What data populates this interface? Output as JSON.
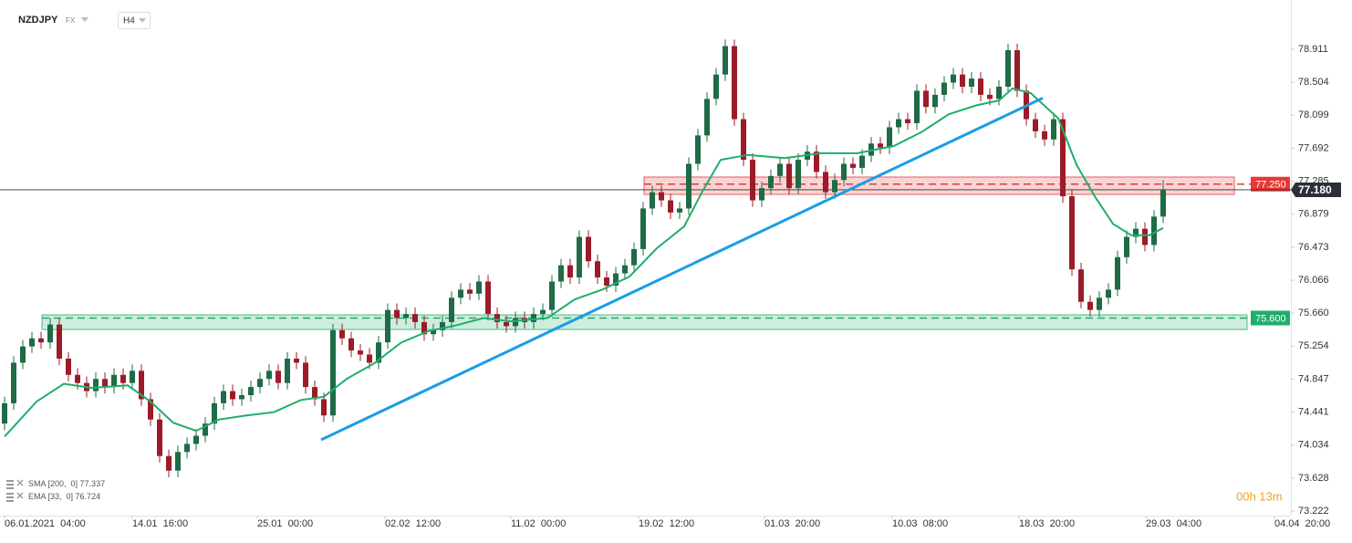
{
  "chart_data": {
    "type": "candlestick",
    "symbol": "NZDJPY",
    "market": "FX",
    "interval": "H4",
    "timer": "00h 13m",
    "up_color": "#1e6b45",
    "down_color": "#9b1c28",
    "ylim": [
      73.166,
      79.518
    ],
    "yticks": [
      78.911,
      78.504,
      78.099,
      77.692,
      77.285,
      76.879,
      76.473,
      76.066,
      {
        "value": 75.66,
        "label": "75.660"
      },
      75.254,
      74.847,
      74.441,
      74.034,
      73.628,
      73.222
    ],
    "xlim": [
      -0.5,
      141.0
    ],
    "xticks": [
      {
        "value": 0,
        "label": "06.01.2021  04:00"
      },
      {
        "value": 14,
        "label": "14.01  16:00"
      },
      {
        "value": 27.7,
        "label": "25.01  00:00"
      },
      {
        "value": 41.7,
        "label": "02.02  12:00"
      },
      {
        "value": 55.5,
        "label": "11.02  00:00"
      },
      {
        "value": 69.5,
        "label": "19.02  12:00"
      },
      {
        "value": 83.3,
        "label": "01.03  20:00"
      },
      {
        "value": 97.3,
        "label": "10.03  08:00"
      },
      {
        "value": 111.2,
        "label": "18.03  20:00"
      },
      {
        "value": 125.1,
        "label": "29.03  04:00"
      },
      {
        "value": 139.2,
        "label": "04.04  20:00"
      }
    ],
    "candles": [
      [
        74.3,
        74.63,
        74.22,
        74.55
      ],
      [
        74.55,
        75.13,
        74.47,
        75.05
      ],
      [
        75.05,
        75.33,
        74.97,
        75.25
      ],
      [
        75.25,
        75.43,
        75.17,
        75.35
      ],
      [
        75.35,
        75.43,
        75.22,
        75.3
      ],
      [
        75.3,
        75.6,
        75.22,
        75.52
      ],
      [
        75.52,
        75.6,
        75.02,
        75.1
      ],
      [
        75.1,
        75.18,
        74.82,
        74.9
      ],
      [
        74.9,
        74.98,
        74.72,
        74.8
      ],
      [
        74.8,
        74.88,
        74.62,
        74.7
      ],
      [
        74.7,
        74.93,
        74.62,
        74.85
      ],
      [
        74.85,
        74.93,
        74.67,
        74.75
      ],
      [
        74.75,
        74.98,
        74.67,
        74.9
      ],
      [
        74.9,
        74.98,
        74.72,
        74.8
      ],
      [
        74.8,
        75.03,
        74.72,
        74.95
      ],
      [
        74.95,
        75.03,
        74.52,
        74.6
      ],
      [
        74.6,
        74.68,
        74.27,
        74.35
      ],
      [
        74.35,
        74.43,
        73.82,
        73.9
      ],
      [
        73.9,
        73.98,
        73.64,
        73.72
      ],
      [
        73.72,
        74.03,
        73.64,
        73.95
      ],
      [
        73.95,
        74.13,
        73.87,
        74.05
      ],
      [
        74.05,
        74.23,
        73.97,
        74.15
      ],
      [
        74.15,
        74.38,
        74.07,
        74.3
      ],
      [
        74.3,
        74.63,
        74.22,
        74.55
      ],
      [
        74.55,
        74.78,
        74.47,
        74.7
      ],
      [
        74.7,
        74.78,
        74.52,
        74.6
      ],
      [
        74.6,
        74.73,
        74.52,
        74.65
      ],
      [
        74.65,
        74.83,
        74.57,
        74.75
      ],
      [
        74.75,
        74.93,
        74.67,
        74.85
      ],
      [
        74.85,
        75.03,
        74.77,
        74.95
      ],
      [
        74.95,
        75.03,
        74.72,
        74.8
      ],
      [
        74.8,
        75.18,
        74.72,
        75.1
      ],
      [
        75.1,
        75.18,
        74.97,
        75.05
      ],
      [
        75.05,
        75.13,
        74.67,
        74.75
      ],
      [
        74.75,
        74.83,
        74.52,
        74.6
      ],
      [
        74.6,
        74.68,
        74.32,
        74.4
      ],
      [
        74.4,
        75.53,
        74.32,
        75.45
      ],
      [
        75.45,
        75.53,
        75.27,
        75.35
      ],
      [
        75.35,
        75.43,
        75.12,
        75.2
      ],
      [
        75.2,
        75.28,
        75.07,
        75.15
      ],
      [
        75.15,
        75.23,
        74.97,
        75.05
      ],
      [
        75.05,
        75.38,
        74.97,
        75.3
      ],
      [
        75.3,
        75.78,
        75.22,
        75.7
      ],
      [
        75.7,
        75.78,
        75.52,
        75.6
      ],
      [
        75.6,
        75.73,
        75.52,
        75.65
      ],
      [
        75.65,
        75.73,
        75.47,
        75.55
      ],
      [
        75.55,
        75.63,
        75.32,
        75.4
      ],
      [
        75.4,
        75.53,
        75.32,
        75.45
      ],
      [
        75.45,
        75.63,
        75.37,
        75.55
      ],
      [
        75.55,
        75.93,
        75.47,
        75.85
      ],
      [
        75.85,
        76.03,
        75.77,
        75.95
      ],
      [
        75.95,
        76.03,
        75.82,
        75.9
      ],
      [
        75.9,
        76.13,
        75.82,
        76.05
      ],
      [
        76.05,
        76.13,
        75.57,
        75.65
      ],
      [
        75.65,
        75.73,
        75.47,
        75.55
      ],
      [
        75.55,
        75.63,
        75.42,
        75.5
      ],
      [
        75.5,
        75.68,
        75.42,
        75.6
      ],
      [
        75.6,
        75.68,
        75.47,
        75.55
      ],
      [
        75.55,
        75.73,
        75.47,
        75.65
      ],
      [
        75.65,
        75.78,
        75.57,
        75.7
      ],
      [
        75.7,
        76.13,
        75.62,
        76.05
      ],
      [
        76.05,
        76.33,
        75.97,
        76.25
      ],
      [
        76.25,
        76.33,
        76.02,
        76.1
      ],
      [
        76.1,
        76.68,
        76.02,
        76.6
      ],
      [
        76.6,
        76.68,
        76.22,
        76.3
      ],
      [
        76.3,
        76.38,
        76.02,
        76.1
      ],
      [
        76.1,
        76.18,
        75.92,
        76.0
      ],
      [
        76.0,
        76.23,
        75.92,
        76.15
      ],
      [
        76.15,
        76.33,
        76.07,
        76.25
      ],
      [
        76.25,
        76.53,
        76.17,
        76.45
      ],
      [
        76.45,
        77.03,
        76.37,
        76.95
      ],
      [
        76.95,
        77.23,
        76.87,
        77.15
      ],
      [
        77.15,
        77.23,
        76.97,
        77.05
      ],
      [
        77.05,
        77.13,
        76.82,
        76.9
      ],
      [
        76.9,
        77.03,
        76.82,
        76.95
      ],
      [
        76.95,
        77.58,
        76.87,
        77.5
      ],
      [
        77.5,
        77.93,
        77.42,
        77.85
      ],
      [
        77.85,
        78.38,
        77.77,
        78.3
      ],
      [
        78.3,
        78.68,
        78.22,
        78.6
      ],
      [
        78.6,
        79.03,
        78.52,
        78.95
      ],
      [
        78.95,
        79.03,
        77.97,
        78.05
      ],
      [
        78.05,
        78.13,
        77.47,
        77.55
      ],
      [
        77.55,
        77.63,
        76.97,
        77.05
      ],
      [
        77.05,
        77.28,
        76.97,
        77.2
      ],
      [
        77.2,
        77.43,
        77.12,
        77.35
      ],
      [
        77.35,
        77.58,
        77.27,
        77.5
      ],
      [
        77.5,
        77.58,
        77.12,
        77.2
      ],
      [
        77.2,
        77.63,
        77.12,
        77.55
      ],
      [
        77.55,
        77.73,
        77.47,
        77.65
      ],
      [
        77.65,
        77.73,
        77.32,
        77.4
      ],
      [
        77.4,
        77.48,
        77.07,
        77.15
      ],
      [
        77.15,
        77.38,
        77.07,
        77.3
      ],
      [
        77.3,
        77.58,
        77.22,
        77.5
      ],
      [
        77.5,
        77.58,
        77.37,
        77.45
      ],
      [
        77.45,
        77.68,
        77.37,
        77.6
      ],
      [
        77.6,
        77.83,
        77.52,
        77.75
      ],
      [
        77.75,
        77.83,
        77.62,
        77.7
      ],
      [
        77.7,
        78.03,
        77.62,
        77.95
      ],
      [
        77.95,
        78.13,
        77.87,
        78.05
      ],
      [
        78.05,
        78.13,
        77.92,
        78.0
      ],
      [
        78.0,
        78.48,
        77.92,
        78.4
      ],
      [
        78.4,
        78.48,
        78.12,
        78.2
      ],
      [
        78.2,
        78.43,
        78.12,
        78.35
      ],
      [
        78.35,
        78.58,
        78.27,
        78.5
      ],
      [
        78.5,
        78.68,
        78.42,
        78.6
      ],
      [
        78.6,
        78.68,
        78.37,
        78.45
      ],
      [
        78.45,
        78.63,
        78.37,
        78.55
      ],
      [
        78.55,
        78.63,
        78.27,
        78.35
      ],
      [
        78.35,
        78.43,
        78.22,
        78.3
      ],
      [
        78.3,
        78.53,
        78.22,
        78.45
      ],
      [
        78.45,
        78.98,
        78.37,
        78.9
      ],
      [
        78.9,
        78.98,
        78.32,
        78.4
      ],
      [
        78.4,
        78.48,
        77.97,
        78.05
      ],
      [
        78.05,
        78.13,
        77.82,
        77.9
      ],
      [
        77.9,
        77.98,
        77.72,
        77.8
      ],
      [
        77.8,
        78.13,
        77.72,
        78.05
      ],
      [
        78.05,
        78.13,
        77.02,
        77.1
      ],
      [
        77.1,
        77.18,
        76.12,
        76.2
      ],
      [
        76.2,
        76.28,
        75.72,
        75.8
      ],
      [
        75.8,
        75.88,
        75.62,
        75.7
      ],
      [
        75.7,
        75.93,
        75.62,
        75.85
      ],
      [
        75.85,
        76.03,
        75.77,
        75.95
      ],
      [
        75.95,
        76.43,
        75.87,
        76.35
      ],
      [
        76.35,
        76.68,
        76.27,
        76.6
      ],
      [
        76.6,
        76.78,
        76.52,
        76.7
      ],
      [
        76.7,
        76.78,
        76.42,
        76.5
      ],
      [
        76.5,
        76.93,
        76.42,
        76.85
      ],
      [
        76.85,
        77.3,
        76.77,
        77.18
      ]
    ],
    "indicators": [
      {
        "label": "SMA [200,  0]",
        "value": 77.337
      },
      {
        "label": "EMA [33,  0]",
        "value": 76.724,
        "color": "#1fae6a",
        "x": [
          0,
          3.5,
          6.5,
          9.5,
          13.5,
          16,
          18.5,
          21,
          23.5,
          26.5,
          29.5,
          32.5,
          35,
          37.5,
          40.5,
          43.5,
          46.5,
          49.5,
          52.5,
          55.5,
          59.5,
          62.5,
          65.5,
          68.5,
          71.5,
          74.5,
          76.5,
          78.5,
          81.5,
          85.5,
          89.5,
          93.5,
          97.5,
          100.5,
          103.5,
          106.5,
          109,
          110.5,
          112.5,
          115.5,
          117.5,
          119.5,
          121.5,
          123.5,
          125.5,
          127
        ],
        "y": [
          74.14,
          74.57,
          74.79,
          74.74,
          74.77,
          74.57,
          74.31,
          74.21,
          74.35,
          74.4,
          74.44,
          74.59,
          74.63,
          74.85,
          75.04,
          75.3,
          75.44,
          75.51,
          75.6,
          75.56,
          75.6,
          75.83,
          75.95,
          76.11,
          76.46,
          76.73,
          77.16,
          77.55,
          77.61,
          77.57,
          77.63,
          77.63,
          77.72,
          77.89,
          78.11,
          78.22,
          78.28,
          78.43,
          78.37,
          78.06,
          77.49,
          77.1,
          76.76,
          76.62,
          76.62,
          76.71
        ]
      }
    ],
    "trendline": {
      "color": "#1a9de6",
      "x": [
        34.7,
        113.8
      ],
      "y": [
        74.1,
        78.31
      ]
    },
    "zones": [
      {
        "color": "#e53935",
        "x": [
          70.1,
          134.8
        ],
        "y": [
          77.123,
          77.337
        ],
        "level": 77.25,
        "level_label": "77.250"
      },
      {
        "color": "#1fae6a",
        "x": [
          4.1,
          136.2
        ],
        "y": [
          75.459,
          75.639
        ],
        "level": 75.6,
        "level_label": "75.600"
      }
    ],
    "last_price": {
      "value": 77.18,
      "label": "77.180",
      "color": "#2b3038"
    }
  }
}
